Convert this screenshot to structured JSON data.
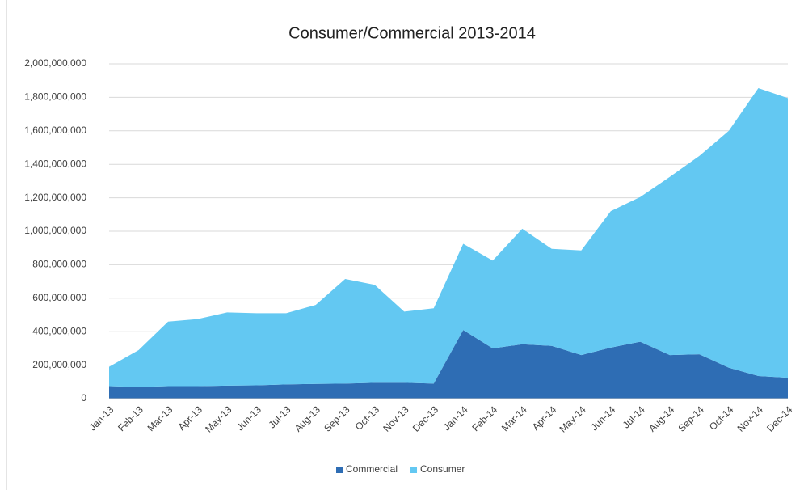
{
  "chart_data": {
    "type": "stacked-area",
    "title": "Consumer/Commercial 2013-2014",
    "categories": [
      "Jan-13",
      "Feb-13",
      "Mar-13",
      "Apr-13",
      "May-13",
      "Jun-13",
      "Jul-13",
      "Aug-13",
      "Sep-13",
      "Oct-13",
      "Nov-13",
      "Dec-13",
      "Jan-14",
      "Feb-14",
      "Mar-14",
      "Apr-14",
      "May-14",
      "Jun-14",
      "Jul-14",
      "Aug-14",
      "Sep-14",
      "Oct-14",
      "Nov-14",
      "Dec-14"
    ],
    "series": [
      {
        "name": "Commercial",
        "color": "#2e6db4",
        "values": [
          75000000,
          70000000,
          75000000,
          75000000,
          78000000,
          80000000,
          85000000,
          88000000,
          90000000,
          95000000,
          95000000,
          90000000,
          410000000,
          300000000,
          325000000,
          315000000,
          260000000,
          305000000,
          340000000,
          260000000,
          265000000,
          185000000,
          135000000,
          125000000
        ]
      },
      {
        "name": "Consumer",
        "color": "#63c8f2",
        "values": [
          115000000,
          220000000,
          385000000,
          400000000,
          437000000,
          430000000,
          425000000,
          472000000,
          625000000,
          585000000,
          425000000,
          450000000,
          515000000,
          525000000,
          690000000,
          580000000,
          625000000,
          815000000,
          865000000,
          1065000000,
          1185000000,
          1415000000,
          1720000000,
          1670000000
        ]
      }
    ],
    "ylim": [
      0,
      2000000000
    ],
    "yticks": [
      0,
      {
        "value": 200000000,
        "label": "200,000,000"
      },
      {
        "value": 400000000,
        "label": "400,000,000"
      },
      {
        "value": 600000000,
        "label": "600,000,000"
      },
      {
        "value": 800000000,
        "label": "800,000,000"
      },
      {
        "value": 1000000000,
        "label": "1,000,000,000"
      },
      {
        "value": 1200000000,
        "label": "1,200,000,000"
      },
      {
        "value": 1400000000,
        "label": "1,400,000,000"
      },
      {
        "value": 1600000000,
        "label": "1,600,000,000"
      },
      {
        "value": 1800000000,
        "label": "1,800,000,000"
      },
      {
        "value": 2000000000,
        "label": "2,000,000,000"
      }
    ],
    "grid": true
  }
}
